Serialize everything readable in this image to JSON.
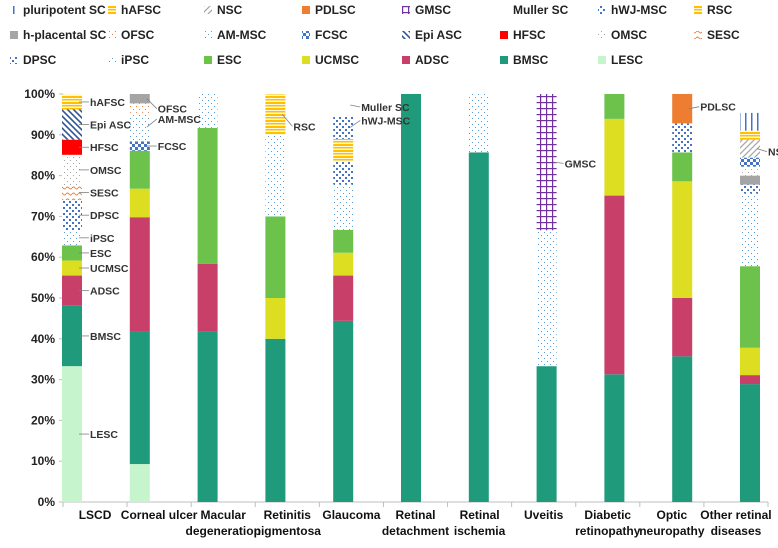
{
  "chart_data": {
    "type": "bar",
    "stacked": true,
    "normalized": true,
    "categories": [
      [
        "LSCD"
      ],
      [
        "Corneal ulcer"
      ],
      [
        "Macular",
        "degeneration"
      ],
      [
        "Retinitis",
        "pigmentosa"
      ],
      [
        "Glaucoma"
      ],
      [
        "Retinal",
        "detachment"
      ],
      [
        "Retinal",
        "ischemia"
      ],
      [
        "Uveitis"
      ],
      [
        "Diabetic",
        "retinopathy"
      ],
      [
        "Optic",
        "neuropathy"
      ],
      [
        "Other retinal",
        "diseases"
      ]
    ],
    "ylim": [
      0,
      100
    ],
    "yticks": [
      "0%",
      "10%",
      "20%",
      "30%",
      "40%",
      "50%",
      "60%",
      "70%",
      "80%",
      "90%",
      "100%"
    ],
    "legend_position": "top",
    "series": [
      {
        "name": "pluripotent SC",
        "color": "#4472c4",
        "pattern": "vlines"
      },
      {
        "name": "hAFSC",
        "color": "#ffc000",
        "pattern": "hlines"
      },
      {
        "name": "NSC",
        "color": "#a5a5a5",
        "pattern": "diag"
      },
      {
        "name": "PDLSC",
        "color": "#ed7d31",
        "pattern": "solid"
      },
      {
        "name": "GMSC",
        "color": "#7030a0",
        "pattern": "grid"
      },
      {
        "name": "Muller SC",
        "color": "#ffffff",
        "pattern": "none"
      },
      {
        "name": "hWJ-MSC",
        "color": "#4472c4",
        "pattern": "dots"
      },
      {
        "name": "RSC",
        "color": "#ffc000",
        "pattern": "hlines"
      },
      {
        "name": "h-placental SC",
        "color": "#a5a5a5",
        "pattern": "solid"
      },
      {
        "name": "OFSC",
        "color": "#ed7d31",
        "pattern": "sparse"
      },
      {
        "name": "AM-MSC",
        "color": "#5b9bd5",
        "pattern": "sparse"
      },
      {
        "name": "FCSC",
        "color": "#4472c4",
        "pattern": "check"
      },
      {
        "name": "Epi ASC",
        "color": "#2e5597",
        "pattern": "backdiag"
      },
      {
        "name": "HFSC",
        "color": "#ff0000",
        "pattern": "solid"
      },
      {
        "name": "OMSC",
        "color": "#a5a5a5",
        "pattern": "sparse"
      },
      {
        "name": "SESC",
        "color": "#ed7d31",
        "pattern": "waves"
      },
      {
        "name": "DPSC",
        "color": "#4472c4",
        "pattern": "dots"
      },
      {
        "name": "iPSC",
        "color": "#5b9bd5",
        "pattern": "sparse"
      },
      {
        "name": "ESC",
        "color": "#6cc24a",
        "pattern": "solid"
      },
      {
        "name": "UCMSC",
        "color": "#dddd22",
        "pattern": "solid"
      },
      {
        "name": "ADSC",
        "color": "#c8406a",
        "pattern": "solid"
      },
      {
        "name": "BMSC",
        "color": "#1f9a7a",
        "pattern": "solid"
      },
      {
        "name": "LESC",
        "color": "#c6f4cc",
        "pattern": "solid"
      }
    ],
    "stacks": [
      {
        "category": "LSCD",
        "segments": [
          {
            "series": "LESC",
            "value": 33.3
          },
          {
            "series": "BMSC",
            "value": 14.8
          },
          {
            "series": "ADSC",
            "value": 7.4
          },
          {
            "series": "UCMSC",
            "value": 3.7
          },
          {
            "series": "ESC",
            "value": 3.7
          },
          {
            "series": "iPSC",
            "value": 3.7
          },
          {
            "series": "DPSC",
            "value": 7.4
          },
          {
            "series": "SESC",
            "value": 3.7
          },
          {
            "series": "OMSC",
            "value": 7.4
          },
          {
            "series": "HFSC",
            "value": 3.7
          },
          {
            "series": "Epi ASC",
            "value": 7.4
          },
          {
            "series": "hAFSC",
            "value": 3.7
          }
        ]
      },
      {
        "category": "Corneal ulcer",
        "segments": [
          {
            "series": "LESC",
            "value": 9.3
          },
          {
            "series": "BMSC",
            "value": 32.6
          },
          {
            "series": "ADSC",
            "value": 27.9
          },
          {
            "series": "UCMSC",
            "value": 7.0
          },
          {
            "series": "ESC",
            "value": 9.3
          },
          {
            "series": "FCSC",
            "value": 2.3
          },
          {
            "series": "AM-MSC",
            "value": 7.0
          },
          {
            "series": "OFSC",
            "value": 2.3
          },
          {
            "series": "h-placental SC",
            "value": 2.3
          }
        ]
      },
      {
        "category": "Macular degeneration",
        "segments": [
          {
            "series": "BMSC",
            "value": 41.7
          },
          {
            "series": "ADSC",
            "value": 16.7
          },
          {
            "series": "ESC",
            "value": 33.3
          },
          {
            "series": "iPSC",
            "value": 8.3
          }
        ]
      },
      {
        "category": "Retinitis pigmentosa",
        "segments": [
          {
            "series": "BMSC",
            "value": 40.0
          },
          {
            "series": "UCMSC",
            "value": 10.0
          },
          {
            "series": "ESC",
            "value": 20.0
          },
          {
            "series": "iPSC",
            "value": 20.0
          },
          {
            "series": "RSC",
            "value": 10.0
          }
        ]
      },
      {
        "category": "Glaucoma",
        "segments": [
          {
            "series": "BMSC",
            "value": 44.4
          },
          {
            "series": "ADSC",
            "value": 11.1
          },
          {
            "series": "UCMSC",
            "value": 5.6
          },
          {
            "series": "ESC",
            "value": 5.6
          },
          {
            "series": "iPSC",
            "value": 11.1
          },
          {
            "series": "DPSC",
            "value": 5.6
          },
          {
            "series": "hAFSC",
            "value": 5.6
          },
          {
            "series": "hWJ-MSC",
            "value": 5.6
          },
          {
            "series": "Muller SC",
            "value": 5.4
          }
        ]
      },
      {
        "category": "Retinal detachment",
        "segments": [
          {
            "series": "BMSC",
            "value": 100.0
          }
        ]
      },
      {
        "category": "Retinal ischemia",
        "segments": [
          {
            "series": "BMSC",
            "value": 85.7
          },
          {
            "series": "iPSC",
            "value": 14.3
          }
        ]
      },
      {
        "category": "Uveitis",
        "segments": [
          {
            "series": "BMSC",
            "value": 33.3
          },
          {
            "series": "iPSC",
            "value": 33.3
          },
          {
            "series": "GMSC",
            "value": 33.4
          }
        ]
      },
      {
        "category": "Diabetic retinopathy",
        "segments": [
          {
            "series": "BMSC",
            "value": 31.3
          },
          {
            "series": "ADSC",
            "value": 43.8
          },
          {
            "series": "UCMSC",
            "value": 18.8
          },
          {
            "series": "ESC",
            "value": 6.1
          }
        ]
      },
      {
        "category": "Optic neuropathy",
        "segments": [
          {
            "series": "BMSC",
            "value": 35.7
          },
          {
            "series": "ADSC",
            "value": 14.3
          },
          {
            "series": "UCMSC",
            "value": 28.6
          },
          {
            "series": "ESC",
            "value": 7.1
          },
          {
            "series": "DPSC",
            "value": 7.1
          },
          {
            "series": "PDLSC",
            "value": 7.2
          }
        ]
      },
      {
        "category": "Other retinal diseases",
        "segments": [
          {
            "series": "BMSC",
            "value": 28.9
          },
          {
            "series": "ADSC",
            "value": 2.2
          },
          {
            "series": "UCMSC",
            "value": 6.7
          },
          {
            "series": "ESC",
            "value": 20.0
          },
          {
            "series": "iPSC",
            "value": 17.8
          },
          {
            "series": "DPSC",
            "value": 2.2
          },
          {
            "series": "h-placental SC",
            "value": 2.2
          },
          {
            "series": "OMSC",
            "value": 2.2
          },
          {
            "series": "FCSC",
            "value": 2.2
          },
          {
            "series": "NSC",
            "value": 4.4
          },
          {
            "series": "hAFSC",
            "value": 2.2
          },
          {
            "series": "pluripotent SC",
            "value": 4.4
          },
          {
            "series": "Muller SC",
            "value": 4.6
          }
        ]
      }
    ],
    "annotations": [
      {
        "category": "LSCD",
        "series": "LESC",
        "text": "LESC"
      },
      {
        "category": "LSCD",
        "series": "BMSC",
        "text": "BMSC"
      },
      {
        "category": "LSCD",
        "series": "ADSC",
        "text": "ADSC"
      },
      {
        "category": "LSCD",
        "series": "UCMSC",
        "text": "UCMSC"
      },
      {
        "category": "LSCD",
        "series": "ESC",
        "text": "ESC"
      },
      {
        "category": "LSCD",
        "series": "iPSC",
        "text": "iPSC"
      },
      {
        "category": "LSCD",
        "series": "DPSC",
        "text": "DPSC"
      },
      {
        "category": "LSCD",
        "series": "SESC",
        "text": "SESC"
      },
      {
        "category": "LSCD",
        "series": "OMSC",
        "text": "OMSC"
      },
      {
        "category": "LSCD",
        "series": "HFSC",
        "text": "HFSC"
      },
      {
        "category": "LSCD",
        "series": "Epi ASC",
        "text": "Epi ASC"
      },
      {
        "category": "LSCD",
        "series": "hAFSC",
        "text": "hAFSC"
      },
      {
        "category": "Corneal ulcer",
        "series": "h-placental SC",
        "text": "OFSC"
      },
      {
        "category": "Corneal ulcer",
        "series": "AM-MSC",
        "text": "AM-MSC"
      },
      {
        "category": "Corneal ulcer",
        "series": "FCSC",
        "text": "FCSC"
      },
      {
        "category": "Retinitis pigmentosa",
        "series": "RSC",
        "text": "RSC"
      },
      {
        "category": "Glaucoma",
        "series": "Muller SC",
        "text": "Muller SC"
      },
      {
        "category": "Glaucoma",
        "series": "hWJ-MSC",
        "text": "hWJ-MSC"
      },
      {
        "category": "Uveitis",
        "series": "GMSC",
        "text": "GMSC"
      },
      {
        "category": "Optic neuropathy",
        "series": "PDLSC",
        "text": "PDLSC"
      },
      {
        "category": "Other retinal diseases",
        "series": "NSC",
        "text": "NSC"
      }
    ]
  }
}
